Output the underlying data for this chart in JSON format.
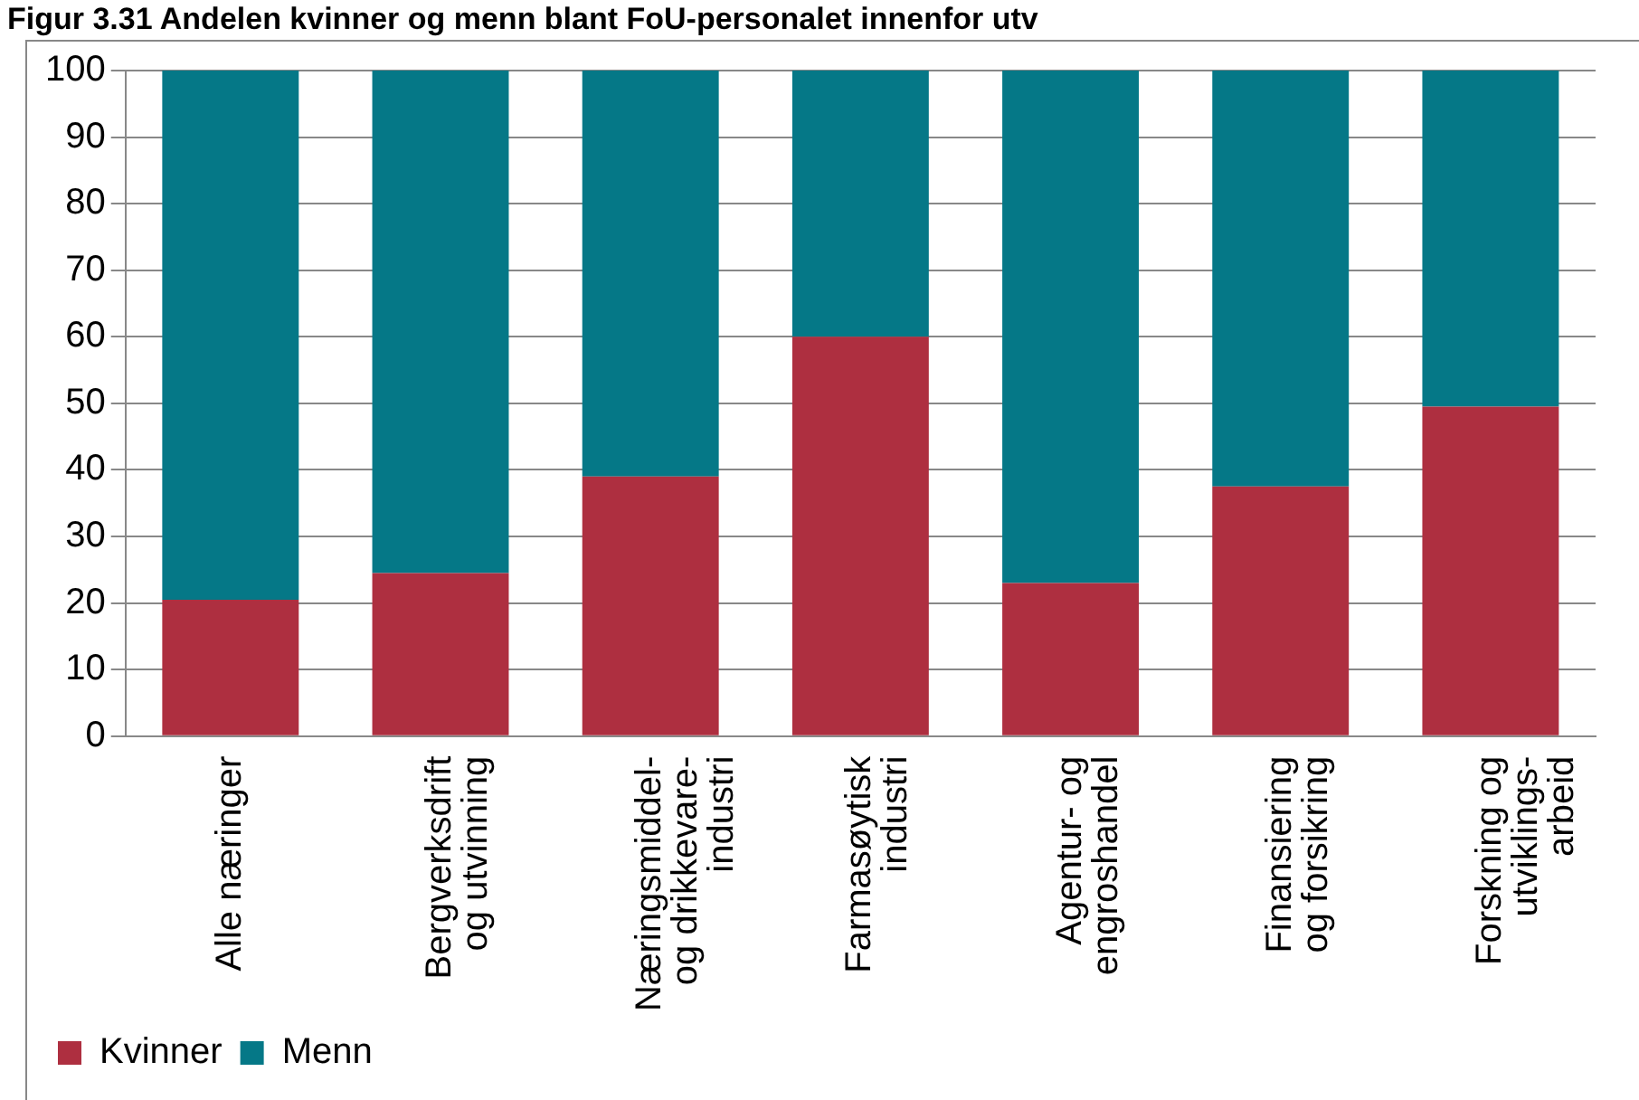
{
  "chart_data": {
    "type": "bar",
    "title": "Figur 3.31 Andelen kvinner og menn blant FoU-personalet innenfor utv",
    "categories": [
      "Alle næringer",
      "Bergverksdrift\nog utvinning",
      "Næringsmiddel-\nog drikkevare-\nindustri",
      "Farmasøytisk\nindustri",
      "Agentur- og\nengroshandel",
      "Finansiering\nog forsikring",
      "Forskning og\nutviklings-\narbeid"
    ],
    "series": [
      {
        "name": "Kvinner",
        "color": "#ae2f40",
        "values": [
          20.5,
          24.5,
          39,
          60,
          23,
          37.5,
          49.5
        ]
      },
      {
        "name": "Menn",
        "color": "#057887",
        "values": [
          79.5,
          75.5,
          61,
          40,
          77,
          62.5,
          50.5
        ]
      }
    ],
    "stacked": true,
    "ylim": [
      0,
      100
    ],
    "yticks": [
      0,
      10,
      20,
      30,
      40,
      50,
      60,
      70,
      80,
      90,
      100
    ],
    "grid": "y",
    "legend": "bottom left"
  }
}
